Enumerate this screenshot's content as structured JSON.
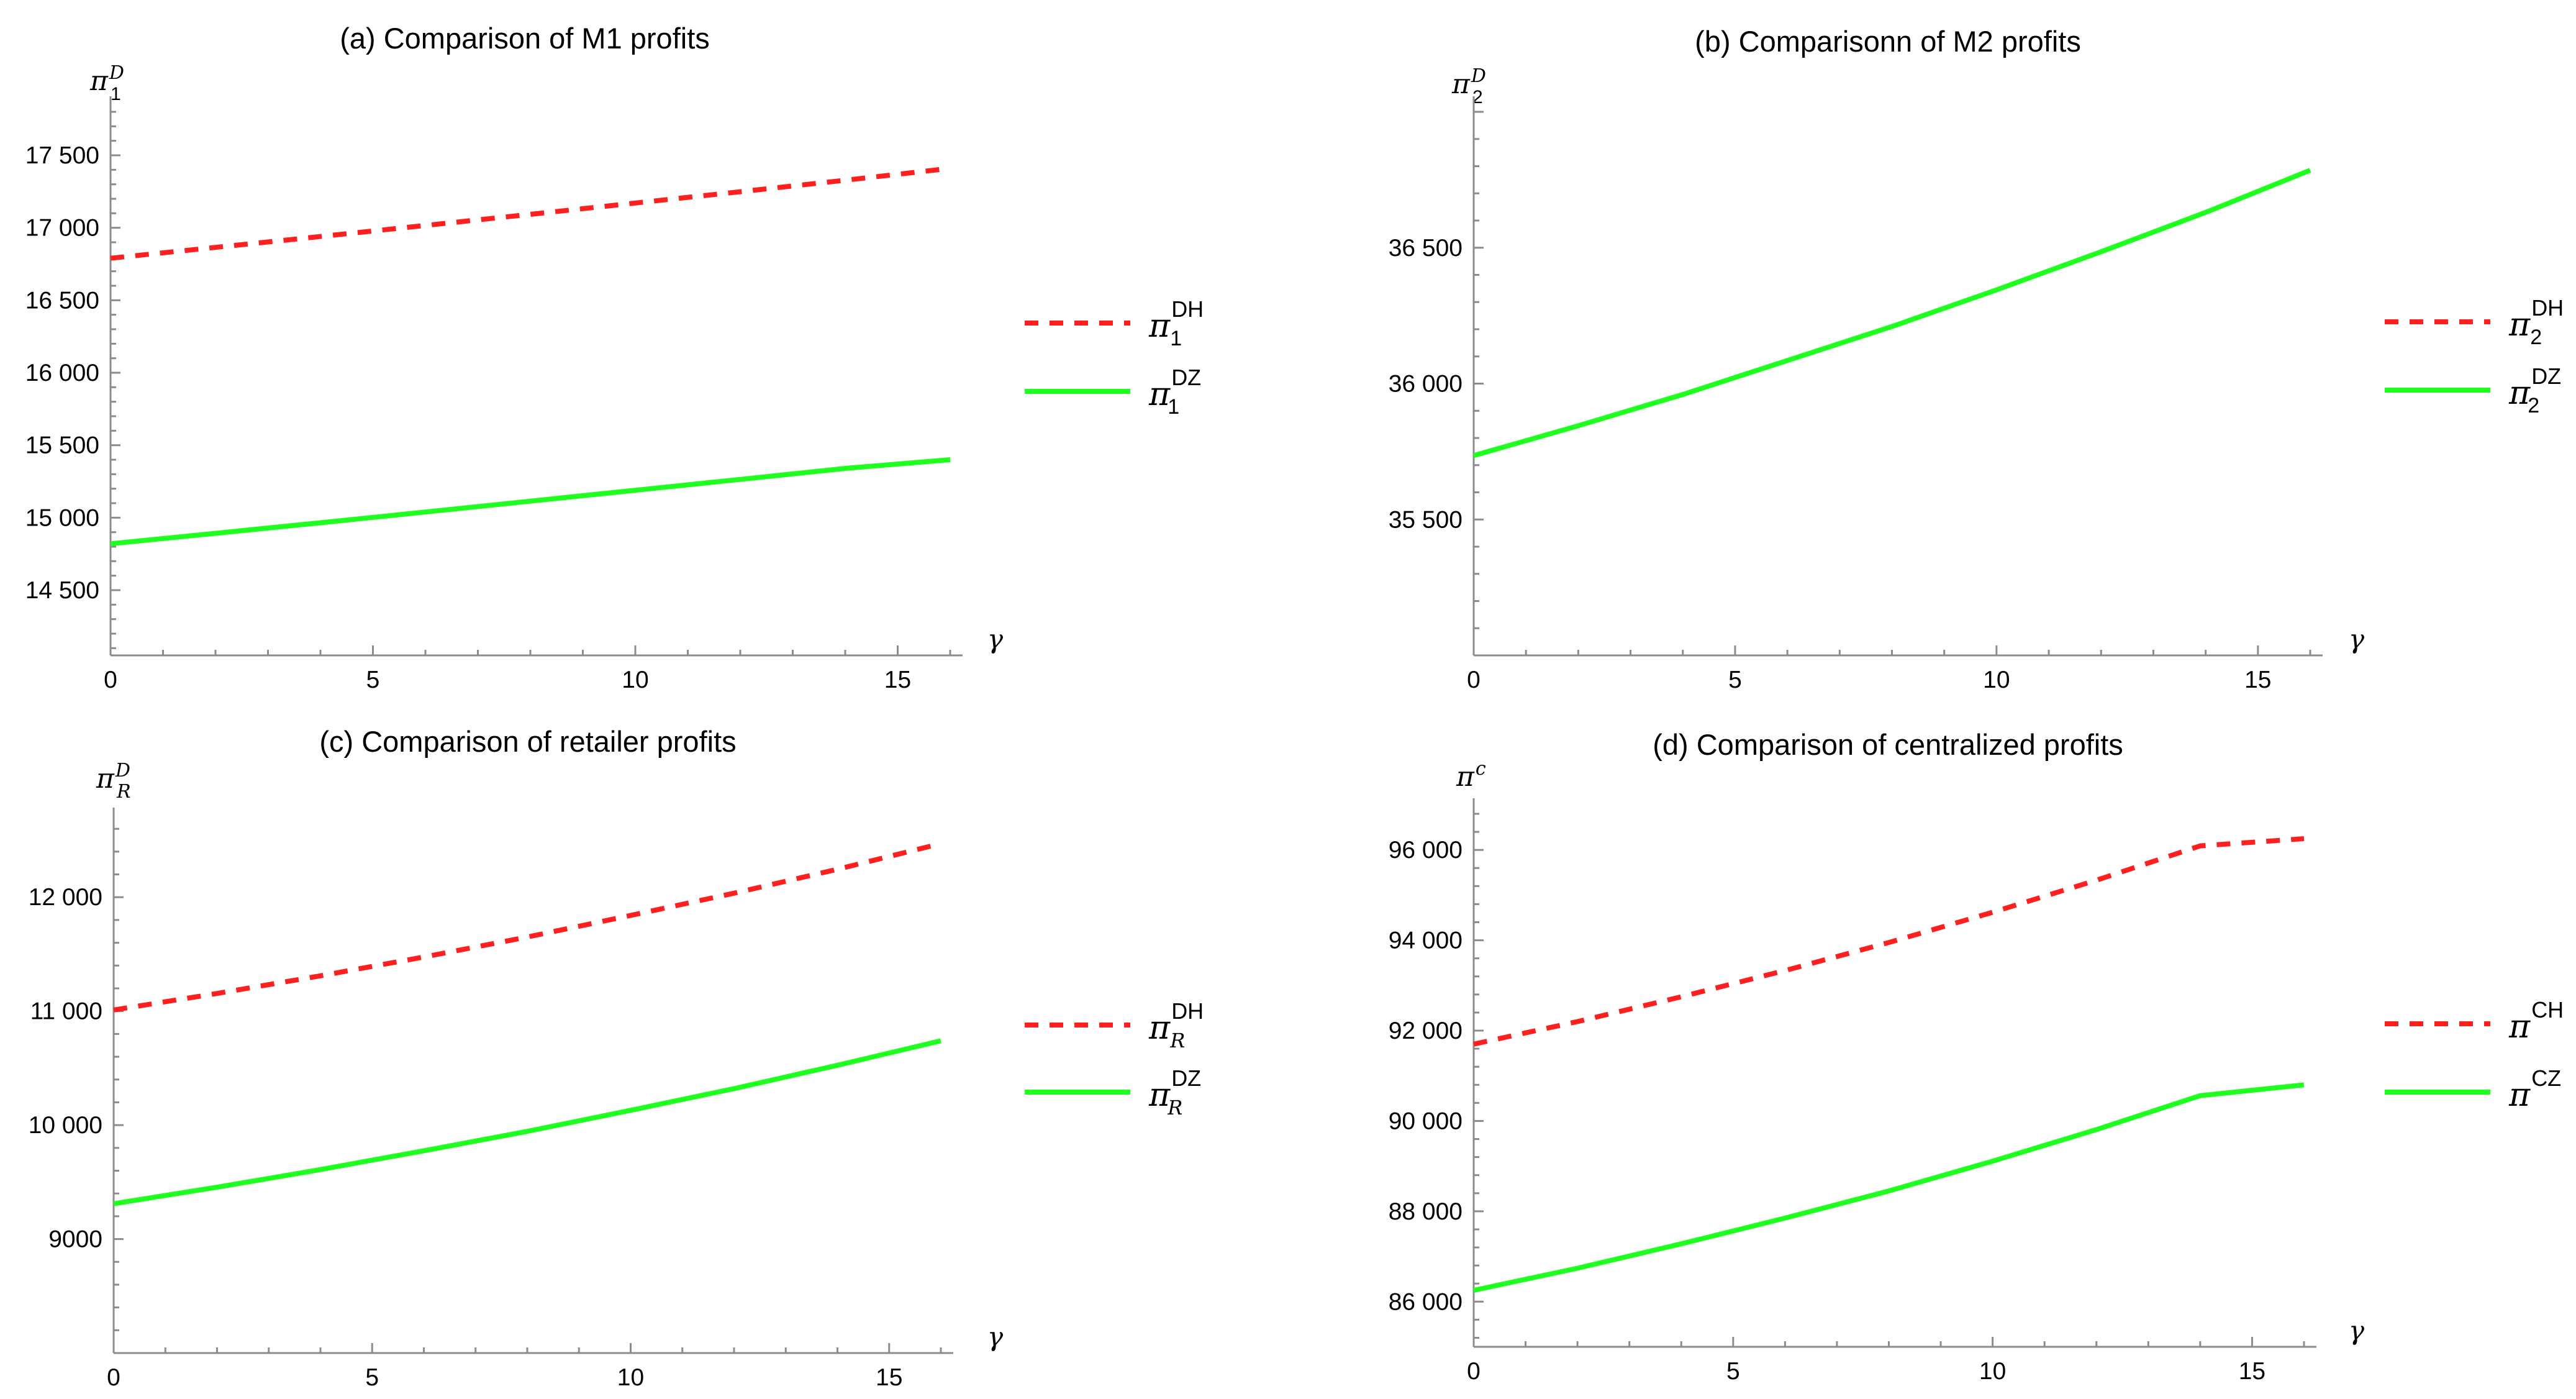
{
  "colors": {
    "dh": "#ff1f1f",
    "dz": "#1fff1f",
    "axis": "#8c8c8c"
  },
  "chart_data": [
    {
      "id": "a",
      "type": "line",
      "title": "(a) Comparison of M1 profits",
      "xlabel": "γ",
      "ylabel": {
        "base": "π",
        "sup": "D",
        "sub": "1",
        "sub_italic": false
      },
      "xlim": [
        0,
        16
      ],
      "ylim": [
        14050,
        17800
      ],
      "xticks": [
        0,
        5,
        10,
        15
      ],
      "yticks": [
        14500,
        15000,
        15500,
        16000,
        16500,
        17000,
        17500
      ],
      "ytick_labels": [
        "14 500",
        "15 000",
        "15 500",
        "16 000",
        "16 500",
        "17 000",
        "17 500"
      ],
      "series": [
        {
          "name": "DH",
          "legend": {
            "base": "π",
            "sup": "DH",
            "sub": "1",
            "sub_italic": false
          },
          "style": "dashed",
          "color": "#ff1f1f",
          "x": [
            0,
            2,
            4,
            6,
            8,
            10,
            12,
            14,
            16
          ],
          "y": [
            16790,
            16865,
            16940,
            17016,
            17093,
            17171,
            17249,
            17328,
            17410
          ]
        },
        {
          "name": "DZ",
          "legend": {
            "base": "π",
            "sup": "DZ",
            "sub": "1",
            "sub_italic": false
          },
          "style": "solid",
          "color": "#1fff1f",
          "x": [
            0,
            2,
            4,
            6,
            8,
            10,
            12,
            14,
            16
          ],
          "y": [
            14820,
            14892,
            14965,
            15039,
            15114,
            15189,
            15264,
            15340,
            15400
          ]
        }
      ]
    },
    {
      "id": "b",
      "type": "line",
      "title": "(b) Comparisonn of M2 profits",
      "xlabel": "γ",
      "ylabel": {
        "base": "π",
        "sup": "D",
        "sub": "2",
        "sub_italic": false
      },
      "xlim": [
        0,
        16
      ],
      "ylim": [
        35000,
        37000
      ],
      "xticks": [
        0,
        5,
        10,
        15
      ],
      "yticks": [
        35500,
        36000,
        36500
      ],
      "ytick_labels": [
        "35 500",
        "36 000",
        "36 500"
      ],
      "series": [
        {
          "name": "DH",
          "legend": {
            "base": "π",
            "sup": "DH",
            "sub": "2",
            "sub_italic": false
          },
          "style": "dashed",
          "color": "#ff1f1f",
          "x": [],
          "y": []
        },
        {
          "name": "DZ",
          "legend": {
            "base": "π",
            "sup": "DZ",
            "sub": "2",
            "sub_italic": false
          },
          "style": "solid",
          "color": "#1fff1f",
          "x": [
            0,
            2,
            4,
            6,
            8,
            10,
            12,
            14,
            16
          ],
          "y": [
            35735,
            35845,
            35960,
            36085,
            36210,
            36345,
            36485,
            36630,
            36785
          ]
        }
      ]
    },
    {
      "id": "c",
      "type": "line",
      "title": "(c) Comparison of retailer profits",
      "xlabel": "γ",
      "ylabel": {
        "base": "π",
        "sup": "D",
        "sub": "R",
        "sub_italic": true
      },
      "xlim": [
        0,
        16
      ],
      "ylim": [
        8000,
        12650
      ],
      "xticks": [
        0,
        5,
        10,
        15
      ],
      "yticks": [
        9000,
        10000,
        11000,
        12000
      ],
      "ytick_labels": [
        "9000",
        "10 000",
        "11 000",
        "12 000"
      ],
      "series": [
        {
          "name": "DH",
          "legend": {
            "base": "π",
            "sup": "DH",
            "sub": "R",
            "sub_italic": true
          },
          "style": "dashed",
          "color": "#ff1f1f",
          "x": [
            0,
            2,
            4,
            6,
            8,
            10,
            12,
            14,
            16
          ],
          "y": [
            11010,
            11155,
            11310,
            11475,
            11650,
            11840,
            12035,
            12245,
            12470
          ]
        },
        {
          "name": "DZ",
          "legend": {
            "base": "π",
            "sup": "DZ",
            "sub": "R",
            "sub_italic": true
          },
          "style": "solid",
          "color": "#1fff1f",
          "x": [
            0,
            2,
            4,
            6,
            8,
            10,
            12,
            14,
            16
          ],
          "y": [
            9310,
            9455,
            9610,
            9775,
            9945,
            10130,
            10320,
            10525,
            10740
          ]
        }
      ]
    },
    {
      "id": "d",
      "type": "line",
      "title": "(d) Comparison of centralized profits",
      "xlabel": "γ",
      "ylabel": {
        "base": "π",
        "sup": "c",
        "sub": "",
        "sub_italic": false
      },
      "xlim": [
        0,
        16
      ],
      "ylim": [
        85000,
        96800
      ],
      "xticks": [
        0,
        5,
        10,
        15
      ],
      "yticks": [
        86000,
        88000,
        90000,
        92000,
        94000,
        96000
      ],
      "ytick_labels": [
        "86 000",
        "88 000",
        "90 000",
        "92 000",
        "94 000",
        "96 000"
      ],
      "series": [
        {
          "name": "CH",
          "legend": {
            "base": "π",
            "sup": "CH",
            "sub": "",
            "sub_italic": false
          },
          "style": "dashed",
          "color": "#ff1f1f",
          "x": [
            0,
            2,
            4,
            6,
            8,
            10,
            12,
            14,
            16
          ],
          "y": [
            91700,
            92200,
            92750,
            93330,
            93950,
            94620,
            95330,
            96090,
            96250
          ]
        },
        {
          "name": "CZ",
          "legend": {
            "base": "π",
            "sup": "CZ",
            "sub": "",
            "sub_italic": false
          },
          "style": "solid",
          "color": "#1fff1f",
          "x": [
            0,
            2,
            4,
            6,
            8,
            10,
            12,
            14,
            16
          ],
          "y": [
            86250,
            86740,
            87280,
            87850,
            88450,
            89110,
            89810,
            90560,
            90800
          ]
        }
      ]
    }
  ]
}
